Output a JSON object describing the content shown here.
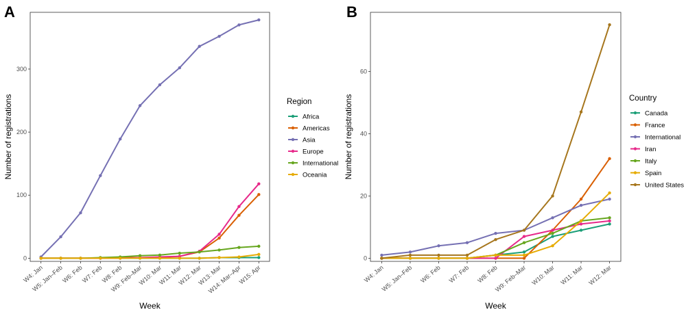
{
  "chart_data": [
    {
      "panel": "A",
      "type": "line",
      "xlabel": "Week",
      "ylabel": "Number of registrations",
      "categories": [
        "W4: Jan",
        "W5: Jan–Feb",
        "W6: Feb",
        "W7: Feb",
        "W8: Feb",
        "W9: Feb–Mar",
        "W10: Mar",
        "W11: Mar",
        "W12: Mar",
        "W13: Mar",
        "W14: Mar–Apr",
        "W15: Apr"
      ],
      "ylim": [
        -5,
        390
      ],
      "yticks": [
        0,
        100,
        200,
        300
      ],
      "grid": false,
      "legend": {
        "title": "Region",
        "placement": "right"
      },
      "series": [
        {
          "name": "Africa",
          "color": "#1b9e77",
          "values": [
            0,
            0,
            0,
            0,
            0,
            0,
            0,
            0,
            0,
            1,
            1,
            1
          ]
        },
        {
          "name": "Americas",
          "color": "#d95f02",
          "values": [
            0,
            0,
            0,
            0,
            1,
            1,
            1,
            3,
            10,
            32,
            68,
            101
          ]
        },
        {
          "name": "Asia",
          "color": "#7570b3",
          "values": [
            2,
            34,
            72,
            131,
            189,
            242,
            275,
            302,
            336,
            352,
            370,
            378
          ]
        },
        {
          "name": "Europe",
          "color": "#e7298a",
          "values": [
            0,
            0,
            0,
            0,
            0,
            1,
            2,
            3,
            11,
            38,
            82,
            118
          ]
        },
        {
          "name": "International",
          "color": "#66a61e",
          "values": [
            0,
            0,
            0,
            1,
            2,
            4,
            5,
            8,
            10,
            13,
            17,
            19
          ]
        },
        {
          "name": "Oceania",
          "color": "#e6ab02",
          "values": [
            0,
            0,
            0,
            0,
            0,
            0,
            0,
            0,
            0,
            1,
            2,
            6
          ]
        }
      ]
    },
    {
      "panel": "B",
      "type": "line",
      "xlabel": "Week",
      "ylabel": "Number of registrations",
      "categories": [
        "W4: Jan",
        "W5: Jan–Feb",
        "W6: Feb",
        "W7: Feb",
        "W8: Feb",
        "W9: Feb–Mar",
        "W10: Mar",
        "W11: Mar",
        "W12: Mar"
      ],
      "ylim": [
        -1,
        79
      ],
      "yticks": [
        0,
        20,
        40,
        60
      ],
      "grid": false,
      "legend": {
        "title": "Country",
        "placement": "right"
      },
      "series": [
        {
          "name": "Canada",
          "color": "#1b9e77",
          "values": [
            0,
            0,
            0,
            0,
            1,
            2,
            7,
            9,
            11
          ]
        },
        {
          "name": "France",
          "color": "#d95f02",
          "values": [
            0,
            0,
            0,
            0,
            0,
            0,
            9,
            19,
            32
          ]
        },
        {
          "name": "International",
          "color": "#7570b3",
          "values": [
            1,
            2,
            4,
            5,
            8,
            9,
            13,
            17,
            19
          ]
        },
        {
          "name": "Iran",
          "color": "#e7298a",
          "values": [
            0,
            0,
            0,
            0,
            0,
            7,
            9,
            11,
            12
          ]
        },
        {
          "name": "Italy",
          "color": "#66a61e",
          "values": [
            0,
            0,
            0,
            0,
            1,
            5,
            8,
            12,
            13
          ]
        },
        {
          "name": "Spain",
          "color": "#e6ab02",
          "values": [
            0,
            0,
            0,
            0,
            1,
            1,
            4,
            12,
            21
          ]
        },
        {
          "name": "United States",
          "color": "#a6761d",
          "values": [
            0,
            1,
            1,
            1,
            6,
            9,
            20,
            47,
            75
          ]
        }
      ]
    }
  ]
}
